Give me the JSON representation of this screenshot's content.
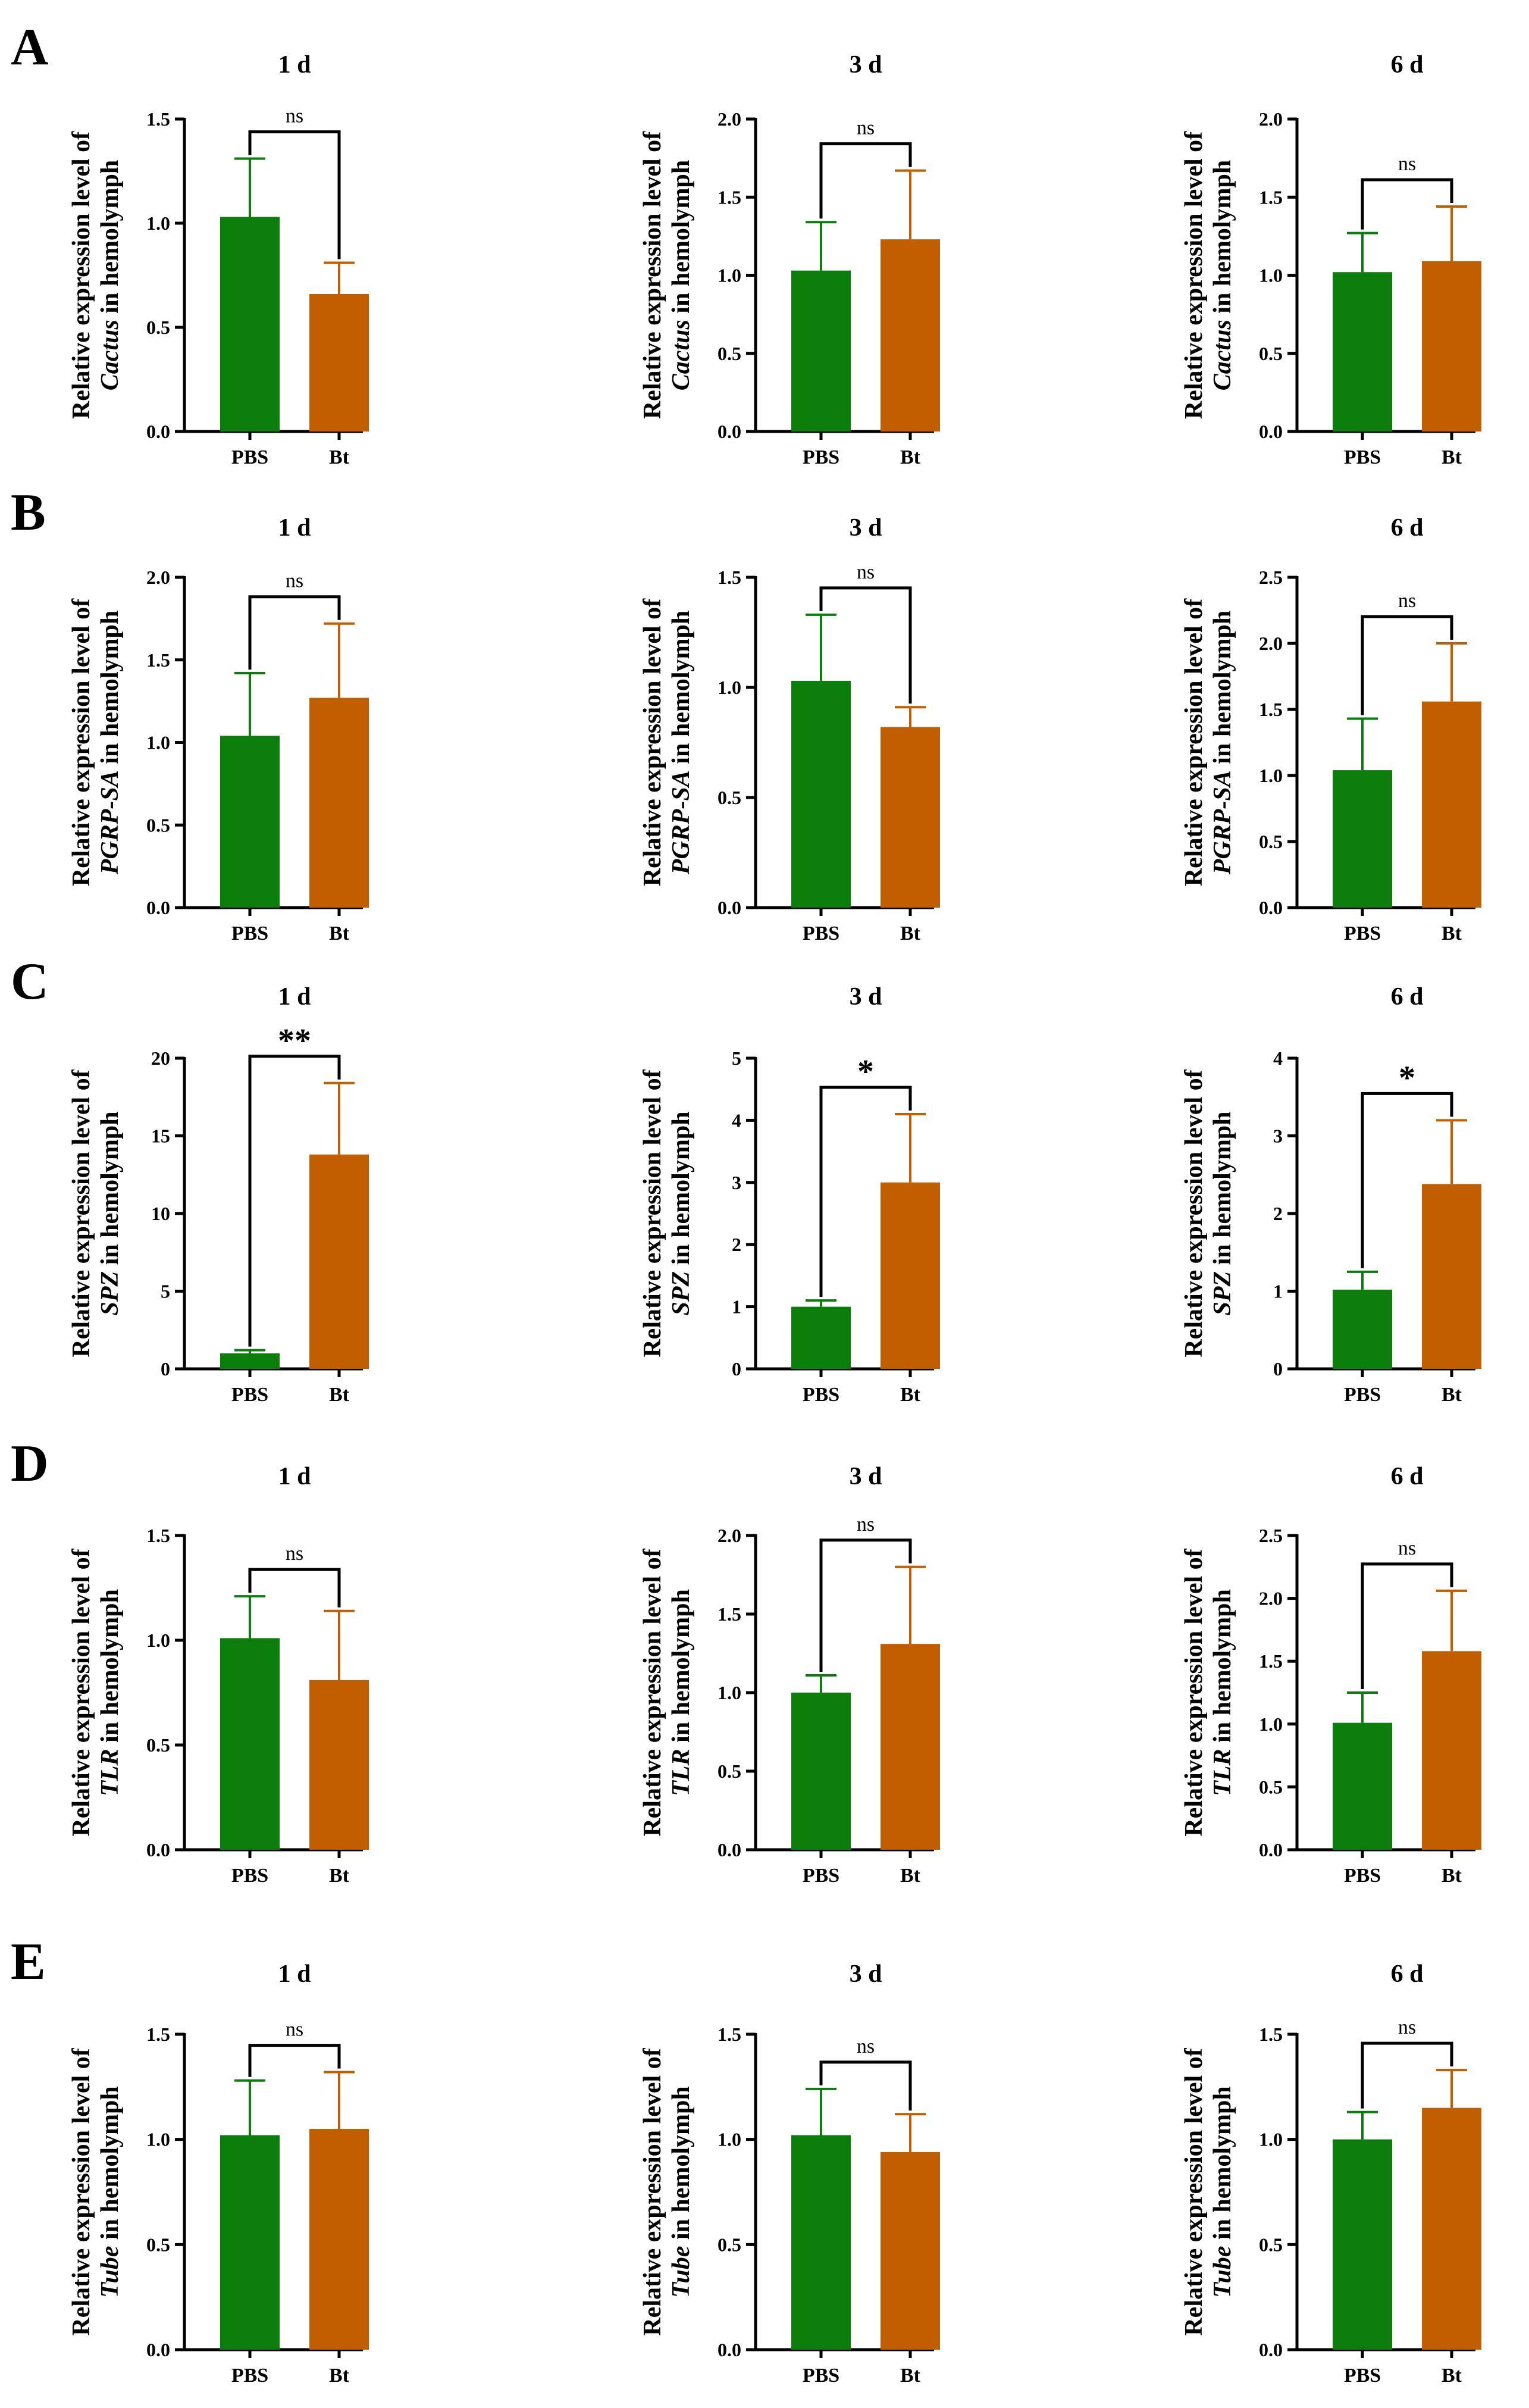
{
  "colors": {
    "pbs": "#0a7d0a",
    "bt": "#c05e00",
    "axis": "#000000"
  },
  "chart_data": [
    {
      "type": "bar",
      "panel": "A",
      "title": "1 d",
      "ylabel_line1": "Relative expression level of",
      "ylabel_gene": "Cactus",
      "ylabel_rest": " in hemolymph",
      "categories": [
        "PBS",
        "Bt"
      ],
      "values": [
        1.03,
        0.66
      ],
      "errors": [
        0.28,
        0.15
      ],
      "ylim": [
        0,
        1.5
      ],
      "yticks": [
        0,
        0.5,
        1.0,
        1.5
      ],
      "ytick_labels": [
        "0.0",
        "0.5",
        "1.0",
        "1.5"
      ],
      "significance": "ns"
    },
    {
      "type": "bar",
      "panel": "A",
      "title": "3 d",
      "ylabel_line1": "Relative expression level of",
      "ylabel_gene": "Cactus",
      "ylabel_rest": " in hemolymph",
      "categories": [
        "PBS",
        "Bt"
      ],
      "values": [
        1.03,
        1.23
      ],
      "errors": [
        0.31,
        0.44
      ],
      "ylim": [
        0,
        2.0
      ],
      "yticks": [
        0,
        0.5,
        1.0,
        1.5,
        2.0
      ],
      "ytick_labels": [
        "0.0",
        "0.5",
        "1.0",
        "1.5",
        "2.0"
      ],
      "significance": "ns"
    },
    {
      "type": "bar",
      "panel": "A",
      "title": "6 d",
      "ylabel_line1": "Relative expression level of",
      "ylabel_gene": "Cactus",
      "ylabel_rest": " in hemolymph",
      "categories": [
        "PBS",
        "Bt"
      ],
      "values": [
        1.02,
        1.09
      ],
      "errors": [
        0.25,
        0.35
      ],
      "ylim": [
        0,
        2.0
      ],
      "yticks": [
        0,
        0.5,
        1.0,
        1.5,
        2.0
      ],
      "ytick_labels": [
        "0.0",
        "0.5",
        "1.0",
        "1.5",
        "2.0"
      ],
      "significance": "ns"
    },
    {
      "type": "bar",
      "panel": "B",
      "title": "1 d",
      "ylabel_line1": "Relative expression level of",
      "ylabel_gene": "PGRP-SA",
      "ylabel_rest": " in hemolymph",
      "categories": [
        "PBS",
        "Bt"
      ],
      "values": [
        1.04,
        1.27
      ],
      "errors": [
        0.38,
        0.45
      ],
      "ylim": [
        0,
        2.0
      ],
      "yticks": [
        0,
        0.5,
        1.0,
        1.5,
        2.0
      ],
      "ytick_labels": [
        "0.0",
        "0.5",
        "1.0",
        "1.5",
        "2.0"
      ],
      "significance": "ns"
    },
    {
      "type": "bar",
      "panel": "B",
      "title": "3 d",
      "ylabel_line1": "Relative expression level of",
      "ylabel_gene": "PGRP-SA",
      "ylabel_rest": " in hemolymph",
      "categories": [
        "PBS",
        "Bt"
      ],
      "values": [
        1.03,
        0.82
      ],
      "errors": [
        0.3,
        0.09
      ],
      "ylim": [
        0,
        1.5
      ],
      "yticks": [
        0,
        0.5,
        1.0,
        1.5
      ],
      "ytick_labels": [
        "0.0",
        "0.5",
        "1.0",
        "1.5"
      ],
      "significance": "ns"
    },
    {
      "type": "bar",
      "panel": "B",
      "title": "6 d",
      "ylabel_line1": "Relative expression level of",
      "ylabel_gene": "PGRP-SA",
      "ylabel_rest": " in hemolymph",
      "categories": [
        "PBS",
        "Bt"
      ],
      "values": [
        1.04,
        1.56
      ],
      "errors": [
        0.39,
        0.44
      ],
      "ylim": [
        0,
        2.5
      ],
      "yticks": [
        0,
        0.5,
        1.0,
        1.5,
        2.0,
        2.5
      ],
      "ytick_labels": [
        "0.0",
        "0.5",
        "1.0",
        "1.5",
        "2.0",
        "2.5"
      ],
      "significance": "ns"
    },
    {
      "type": "bar",
      "panel": "C",
      "title": "1 d",
      "ylabel_line1": "Relative expression level of",
      "ylabel_gene": "SPZ",
      "ylabel_rest": " in hemolymph",
      "categories": [
        "PBS",
        "Bt"
      ],
      "values": [
        1.0,
        13.8
      ],
      "errors": [
        0.2,
        4.6
      ],
      "ylim": [
        0,
        20
      ],
      "yticks": [
        0,
        5,
        10,
        15,
        20
      ],
      "ytick_labels": [
        "0",
        "5",
        "10",
        "15",
        "20"
      ],
      "significance": "**"
    },
    {
      "type": "bar",
      "panel": "C",
      "title": "3 d",
      "ylabel_line1": "Relative expression level of",
      "ylabel_gene": "SPZ",
      "ylabel_rest": " in hemolymph",
      "categories": [
        "PBS",
        "Bt"
      ],
      "values": [
        1.0,
        3.0
      ],
      "errors": [
        0.1,
        1.1
      ],
      "ylim": [
        0,
        5
      ],
      "yticks": [
        0,
        1,
        2,
        3,
        4,
        5
      ],
      "ytick_labels": [
        "0",
        "1",
        "2",
        "3",
        "4",
        "5"
      ],
      "significance": "*"
    },
    {
      "type": "bar",
      "panel": "C",
      "title": "6 d",
      "ylabel_line1": "Relative expression level of",
      "ylabel_gene": "SPZ",
      "ylabel_rest": " in hemolymph",
      "categories": [
        "PBS",
        "Bt"
      ],
      "values": [
        1.02,
        2.38
      ],
      "errors": [
        0.23,
        0.82
      ],
      "ylim": [
        0,
        4
      ],
      "yticks": [
        0,
        1,
        2,
        3,
        4
      ],
      "ytick_labels": [
        "0",
        "1",
        "2",
        "3",
        "4"
      ],
      "significance": "*"
    },
    {
      "type": "bar",
      "panel": "D",
      "title": "1 d",
      "ylabel_line1": "Relative expression level of",
      "ylabel_gene": "TLR",
      "ylabel_rest": " in hemolymph",
      "categories": [
        "PBS",
        "Bt"
      ],
      "values": [
        1.01,
        0.81
      ],
      "errors": [
        0.2,
        0.33
      ],
      "ylim": [
        0,
        1.5
      ],
      "yticks": [
        0,
        0.5,
        1.0,
        1.5
      ],
      "ytick_labels": [
        "0.0",
        "0.5",
        "1.0",
        "1.5"
      ],
      "significance": "ns"
    },
    {
      "type": "bar",
      "panel": "D",
      "title": "3 d",
      "ylabel_line1": "Relative expression level of",
      "ylabel_gene": "TLR",
      "ylabel_rest": " in hemolymph",
      "categories": [
        "PBS",
        "Bt"
      ],
      "values": [
        1.0,
        1.31
      ],
      "errors": [
        0.11,
        0.49
      ],
      "ylim": [
        0,
        2.0
      ],
      "yticks": [
        0,
        0.5,
        1.0,
        1.5,
        2.0
      ],
      "ytick_labels": [
        "0.0",
        "0.5",
        "1.0",
        "1.5",
        "2.0"
      ],
      "significance": "ns"
    },
    {
      "type": "bar",
      "panel": "D",
      "title": "6 d",
      "ylabel_line1": "Relative expression level of",
      "ylabel_gene": "TLR",
      "ylabel_rest": " in hemolymph",
      "categories": [
        "PBS",
        "Bt"
      ],
      "values": [
        1.01,
        1.58
      ],
      "errors": [
        0.24,
        0.48
      ],
      "ylim": [
        0,
        2.5
      ],
      "yticks": [
        0,
        0.5,
        1.0,
        1.5,
        2.0,
        2.5
      ],
      "ytick_labels": [
        "0.0",
        "0.5",
        "1.0",
        "1.5",
        "2.0",
        "2.5"
      ],
      "significance": "ns"
    },
    {
      "type": "bar",
      "panel": "E",
      "title": "1 d",
      "ylabel_line1": "Relative expression level of",
      "ylabel_gene": "Tube",
      "ylabel_rest": " in hemolymph",
      "categories": [
        "PBS",
        "Bt"
      ],
      "values": [
        1.02,
        1.05
      ],
      "errors": [
        0.26,
        0.27
      ],
      "ylim": [
        0,
        1.5
      ],
      "yticks": [
        0,
        0.5,
        1.0,
        1.5
      ],
      "ytick_labels": [
        "0.0",
        "0.5",
        "1.0",
        "1.5"
      ],
      "significance": "ns"
    },
    {
      "type": "bar",
      "panel": "E",
      "title": "3 d",
      "ylabel_line1": "Relative expression level of",
      "ylabel_gene": "Tube",
      "ylabel_rest": " in hemolymph",
      "categories": [
        "PBS",
        "Bt"
      ],
      "values": [
        1.02,
        0.94
      ],
      "errors": [
        0.22,
        0.18
      ],
      "ylim": [
        0,
        1.5
      ],
      "yticks": [
        0,
        0.5,
        1.0,
        1.5
      ],
      "ytick_labels": [
        "0.0",
        "0.5",
        "1.0",
        "1.5"
      ],
      "significance": "ns"
    },
    {
      "type": "bar",
      "panel": "E",
      "title": "6 d",
      "ylabel_line1": "Relative expression level of",
      "ylabel_gene": "Tube",
      "ylabel_rest": " in hemolymph",
      "categories": [
        "PBS",
        "Bt"
      ],
      "values": [
        1.0,
        1.15
      ],
      "errors": [
        0.13,
        0.18
      ],
      "ylim": [
        0,
        1.5
      ],
      "yticks": [
        0,
        0.5,
        1.0,
        1.5
      ],
      "ytick_labels": [
        "0.0",
        "0.5",
        "1.0",
        "1.5"
      ],
      "significance": "ns"
    }
  ]
}
